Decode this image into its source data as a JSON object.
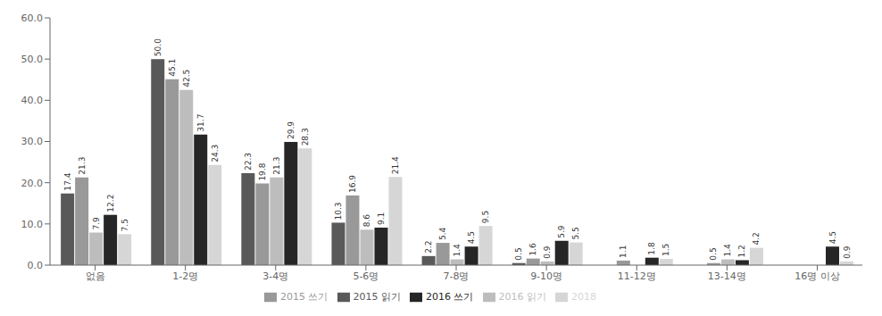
{
  "chart_data": {
    "type": "bar",
    "categories": [
      "없음",
      "1-2명",
      "3-4명",
      "5-6명",
      "7-8명",
      "9-10명",
      "11-12명",
      "13-14명",
      "16명 이상"
    ],
    "series": [
      {
        "name": "2015 읽기",
        "color": "#595959",
        "values": [
          17.4,
          50.0,
          22.3,
          10.3,
          2.2,
          0.5,
          0.0,
          0.0,
          0.0
        ],
        "value_labels": [
          "17.4",
          "50.0",
          "22.3",
          "10.3",
          "2.2",
          "0.5",
          null,
          null,
          null
        ]
      },
      {
        "name": "2015 쓰기",
        "color": "#999999",
        "values": [
          21.3,
          45.1,
          19.8,
          16.9,
          5.4,
          1.6,
          1.1,
          0.5,
          0.0
        ],
        "value_labels": [
          "21.3",
          "45.1",
          "19.8",
          "16.9",
          "5.4",
          "1.6",
          "1.1",
          "0.5",
          null
        ]
      },
      {
        "name": "2016 읽기",
        "color": "#bdbdbd",
        "values": [
          7.9,
          42.5,
          21.3,
          8.6,
          1.4,
          0.9,
          0.0,
          1.4,
          0.0
        ],
        "value_labels": [
          "7.9",
          "42.5",
          "21.3",
          "8.6",
          "1.4",
          "0.9",
          null,
          "1.4",
          null
        ]
      },
      {
        "name": "2016 쓰기",
        "color": "#262626",
        "values": [
          12.2,
          31.7,
          29.9,
          9.1,
          4.5,
          5.9,
          1.8,
          1.2,
          4.5
        ],
        "value_labels": [
          "12.2",
          "31.7",
          "29.9",
          "9.1",
          "4.5",
          "5.9",
          "1.8",
          "1.2",
          "4.5"
        ]
      },
      {
        "name": "2018",
        "color": "#d6d6d6",
        "values": [
          7.5,
          24.3,
          28.3,
          21.4,
          9.5,
          5.5,
          1.5,
          4.2,
          0.9
        ],
        "value_labels": [
          "7.5",
          "24.3",
          "28.3",
          "21.4",
          "9.5",
          "5.5",
          "1.5",
          "4.2",
          "0.9"
        ]
      }
    ],
    "ylim": [
      0,
      60
    ],
    "yticks": [
      {
        "value": 0,
        "label": "0.0"
      },
      {
        "value": 10,
        "label": "10.0"
      },
      {
        "value": 20,
        "label": "20.0"
      },
      {
        "value": 30,
        "label": "30.0"
      },
      {
        "value": 40,
        "label": "40.0"
      },
      {
        "value": 50,
        "label": "50.0"
      },
      {
        "value": 60,
        "label": "60.0"
      }
    ],
    "grid": false,
    "legend": "bottom",
    "data_labels": true
  }
}
